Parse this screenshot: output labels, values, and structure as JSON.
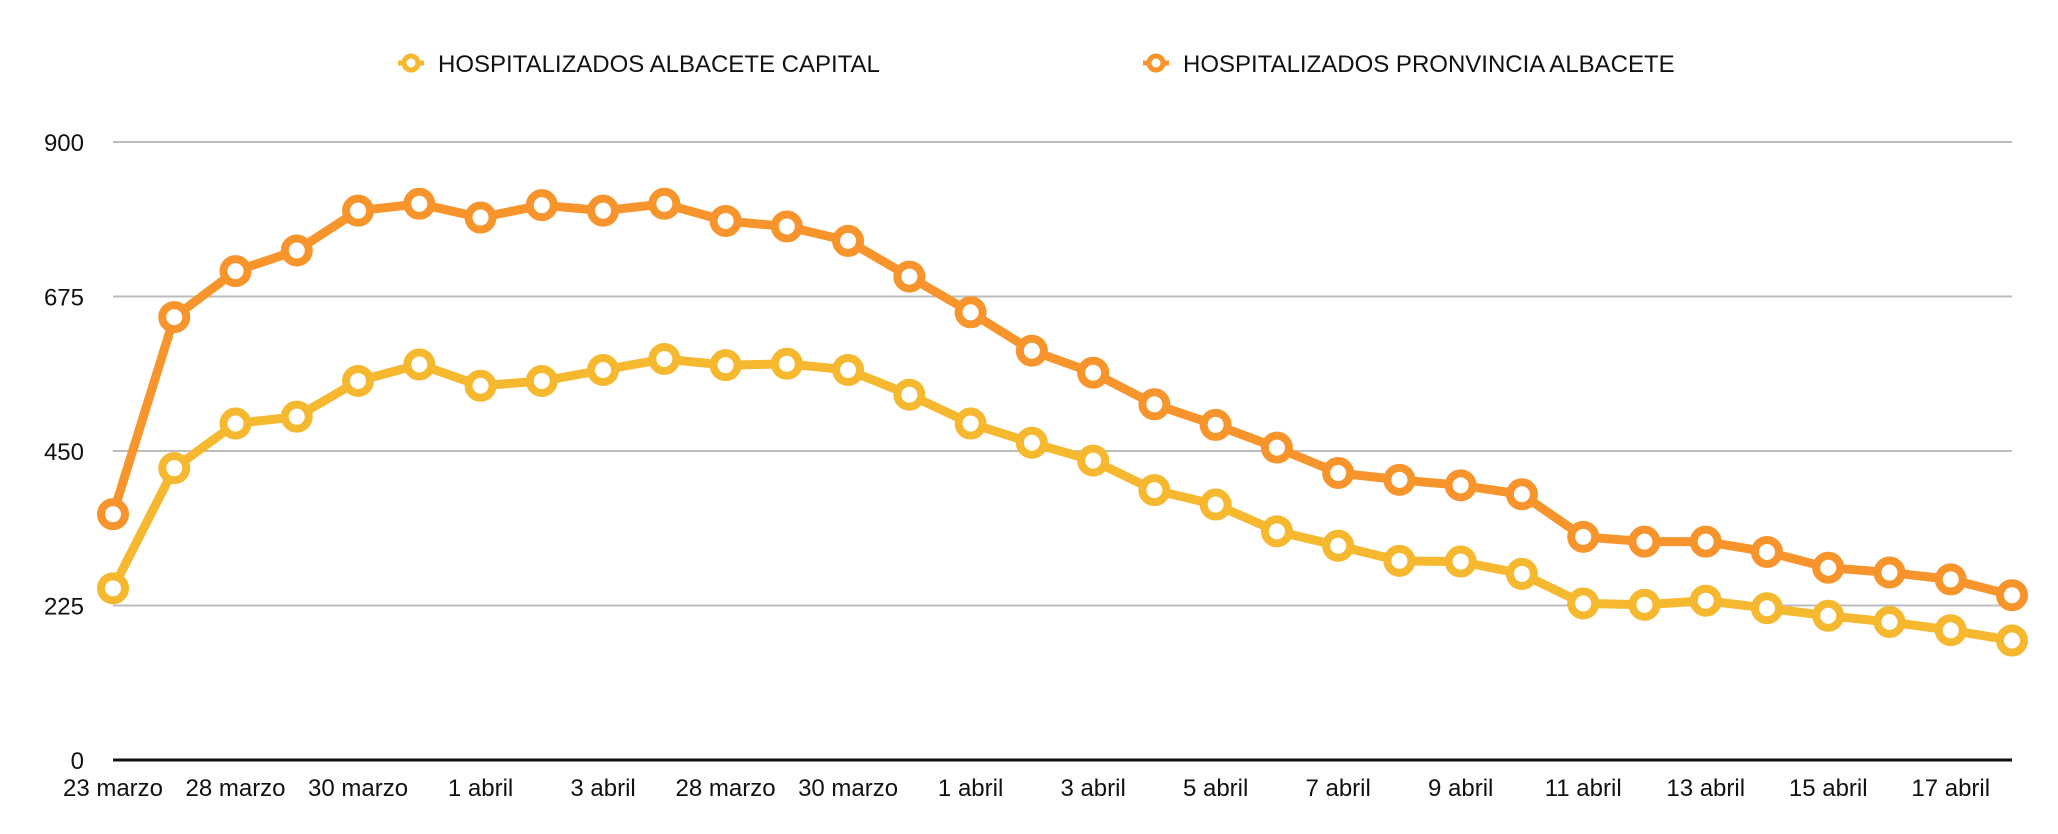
{
  "chart_data": {
    "type": "line",
    "title": "",
    "xlabel": "",
    "ylabel": "",
    "ylim": [
      0,
      900
    ],
    "y_ticks": [
      0,
      225,
      450,
      675,
      900
    ],
    "grid": true,
    "legend_position": "top-center",
    "x": [
      "23 marzo",
      "",
      "28 marzo",
      "",
      "30 marzo",
      "",
      "1 abril",
      "",
      "3 abril",
      "",
      "28 marzo",
      "",
      "30 marzo",
      "",
      "1 abril",
      "",
      "3 abril",
      "",
      "5 abril",
      "",
      "7 abril",
      "",
      "9 abril",
      "",
      "11 abril",
      "",
      "13 abril",
      "",
      "15 abril",
      "",
      "17 abril",
      ""
    ],
    "x_tick_labels": [
      "23 marzo",
      "28 marzo",
      "30 marzo",
      "1 abril",
      "3 abril",
      "28 marzo",
      "30 marzo",
      "1 abril",
      "3 abril",
      "5 abril",
      "7 abril",
      "9 abril",
      "11 abril",
      "13 abril",
      "15 abril",
      "17 abril"
    ],
    "series": [
      {
        "name": "HOSPITALIZADOS ALBACETE CAPITAL",
        "color": "#F5B82E",
        "values": [
          250,
          425,
          490,
          500,
          552,
          576,
          545,
          552,
          568,
          584,
          575,
          577,
          568,
          532,
          490,
          462,
          436,
          393,
          372,
          333,
          312,
          290,
          289,
          271,
          228,
          226,
          232,
          221,
          210,
          201,
          189,
          174
        ]
      },
      {
        "name": "HOSPITALIZADOS PRONVINCIA ALBACETE",
        "color": "#F7952C",
        "values": [
          358,
          645,
          712,
          742,
          800,
          810,
          790,
          808,
          800,
          810,
          785,
          777,
          756,
          704,
          652,
          596,
          564,
          518,
          488,
          455,
          418,
          408,
          400,
          387,
          325,
          318,
          318,
          303,
          280,
          273,
          263,
          240
        ]
      }
    ]
  },
  "colors": {
    "grid": "#BDBDBD",
    "axis": "#111111",
    "marker_fill": "#ffffff"
  }
}
